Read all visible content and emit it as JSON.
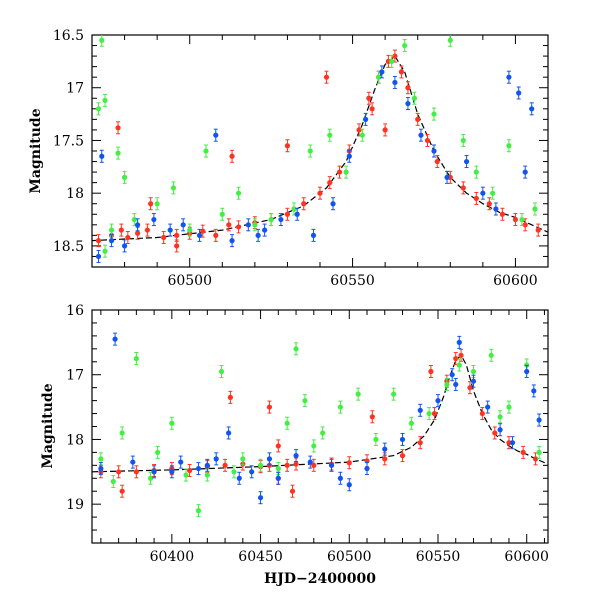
{
  "colors": {
    "red": "#ff3322",
    "green": "#44ee44",
    "blue": "#1155ee",
    "model": "#000000"
  },
  "chart_data": [
    {
      "id": "top",
      "type": "scatter",
      "title": "",
      "xlabel": "",
      "ylabel": "Magnitude",
      "xlim": [
        60470,
        60610
      ],
      "ylim": [
        18.7,
        16.5
      ],
      "y_inverted": true,
      "grid": false,
      "x_ticks": [
        60500,
        60550,
        60600
      ],
      "x_tick_labels": [
        "60500",
        "60550",
        "60600"
      ],
      "y_ticks": [
        16.5,
        17,
        17.5,
        18,
        18.5
      ],
      "y_tick_labels": [
        "16.5",
        "17",
        "17.5",
        "18",
        "18.5"
      ],
      "series": [
        {
          "name": "",
          "color": "red",
          "points": [
            [
              60472,
              18.45
            ],
            [
              60476,
              18.4
            ],
            [
              60479,
              18.35
            ],
            [
              60481,
              18.42
            ],
            [
              60484,
              18.38
            ],
            [
              60488,
              18.1
            ],
            [
              60492,
              18.42
            ],
            [
              60496,
              18.4
            ],
            [
              60500,
              18.38
            ],
            [
              60504,
              18.36
            ],
            [
              60508,
              18.4
            ],
            [
              60512,
              18.3
            ],
            [
              60515,
              18.32
            ],
            [
              60520,
              18.28
            ],
            [
              60525,
              18.25
            ],
            [
              60530,
              18.2
            ],
            [
              60535,
              18.1
            ],
            [
              60540,
              18.0
            ],
            [
              60543,
              17.9
            ],
            [
              60546,
              17.8
            ],
            [
              60549,
              17.6
            ],
            [
              60552,
              17.4
            ],
            [
              60555,
              17.1
            ],
            [
              60558,
              16.9
            ],
            [
              60561,
              16.75
            ],
            [
              60563,
              16.7
            ],
            [
              60565,
              16.85
            ],
            [
              60567,
              17.0
            ],
            [
              60570,
              17.3
            ],
            [
              60573,
              17.5
            ],
            [
              60576,
              17.7
            ],
            [
              60580,
              17.85
            ],
            [
              60584,
              17.95
            ],
            [
              60588,
              18.05
            ],
            [
              60592,
              18.1
            ],
            [
              60596,
              18.2
            ],
            [
              60600,
              18.25
            ],
            [
              60603,
              18.3
            ],
            [
              60607,
              18.35
            ],
            [
              60478,
              17.38
            ],
            [
              60487,
              18.35
            ],
            [
              60513,
              17.65
            ],
            [
              60530,
              17.55
            ],
            [
              60542,
              16.9
            ],
            [
              60556,
              17.2
            ],
            [
              60560,
              17.4
            ],
            [
              60496,
              18.5
            ]
          ]
        },
        {
          "name": "",
          "color": "green",
          "points": [
            [
              60472,
              17.2
            ],
            [
              60474,
              17.12
            ],
            [
              60473,
              16.55
            ],
            [
              60478,
              17.62
            ],
            [
              60480,
              17.85
            ],
            [
              60483,
              18.25
            ],
            [
              60490,
              18.1
            ],
            [
              60495,
              17.95
            ],
            [
              60500,
              18.35
            ],
            [
              60505,
              17.6
            ],
            [
              60510,
              18.2
            ],
            [
              60515,
              18.0
            ],
            [
              60520,
              18.3
            ],
            [
              60525,
              18.25
            ],
            [
              60532,
              18.15
            ],
            [
              60537,
              17.6
            ],
            [
              60543,
              17.45
            ],
            [
              60548,
              17.8
            ],
            [
              60553,
              17.45
            ],
            [
              60558,
              16.9
            ],
            [
              60562,
              16.75
            ],
            [
              60566,
              16.6
            ],
            [
              60569,
              17.1
            ],
            [
              60575,
              17.25
            ],
            [
              60580,
              16.55
            ],
            [
              60584,
              17.5
            ],
            [
              60588,
              17.8
            ],
            [
              60593,
              18.0
            ],
            [
              60598,
              17.55
            ],
            [
              60602,
              18.25
            ],
            [
              60606,
              18.15
            ],
            [
              60474,
              18.55
            ],
            [
              60476,
              18.35
            ]
          ]
        },
        {
          "name": "",
          "color": "blue",
          "points": [
            [
              60472,
              18.6
            ],
            [
              60473,
              17.65
            ],
            [
              60476,
              18.45
            ],
            [
              60480,
              18.5
            ],
            [
              60484,
              18.3
            ],
            [
              60489,
              18.25
            ],
            [
              60494,
              18.35
            ],
            [
              60498,
              18.3
            ],
            [
              60503,
              18.4
            ],
            [
              60508,
              17.45
            ],
            [
              60513,
              18.45
            ],
            [
              60518,
              18.3
            ],
            [
              60523,
              18.35
            ],
            [
              60528,
              18.25
            ],
            [
              60533,
              18.2
            ],
            [
              60538,
              18.4
            ],
            [
              60544,
              18.1
            ],
            [
              60549,
              17.65
            ],
            [
              60554,
              17.3
            ],
            [
              60559,
              16.85
            ],
            [
              60563,
              16.95
            ],
            [
              60567,
              17.15
            ],
            [
              60571,
              17.45
            ],
            [
              60575,
              17.6
            ],
            [
              60579,
              17.85
            ],
            [
              60585,
              17.7
            ],
            [
              60590,
              18.0
            ],
            [
              60594,
              18.15
            ],
            [
              60598,
              16.9
            ],
            [
              60601,
              17.05
            ],
            [
              60603,
              17.8
            ],
            [
              60605,
              17.2
            ],
            [
              60521,
              18.4
            ]
          ]
        }
      ],
      "model_curve": [
        [
          60470,
          18.45
        ],
        [
          60490,
          18.42
        ],
        [
          60510,
          18.35
        ],
        [
          60525,
          18.25
        ],
        [
          60535,
          18.12
        ],
        [
          60542,
          17.95
        ],
        [
          60548,
          17.7
        ],
        [
          60553,
          17.35
        ],
        [
          60557,
          17.0
        ],
        [
          60560,
          16.78
        ],
        [
          60563,
          16.7
        ],
        [
          60566,
          16.85
        ],
        [
          60570,
          17.25
        ],
        [
          60575,
          17.6
        ],
        [
          60580,
          17.85
        ],
        [
          60585,
          18.0
        ],
        [
          60590,
          18.1
        ],
        [
          60595,
          18.18
        ],
        [
          60600,
          18.23
        ],
        [
          60605,
          18.3
        ],
        [
          60610,
          18.37
        ]
      ]
    },
    {
      "id": "bottom",
      "type": "scatter",
      "title": "",
      "xlabel": "HJD−2400000",
      "ylabel": "Magnitude",
      "xlim": [
        60355,
        60612
      ],
      "ylim": [
        19.6,
        16.0
      ],
      "y_inverted": true,
      "grid": false,
      "x_ticks": [
        60400,
        60450,
        60500,
        60550,
        60600
      ],
      "x_tick_labels": [
        "60400",
        "60450",
        "60500",
        "60550",
        "60600"
      ],
      "y_ticks": [
        16,
        17,
        18,
        19
      ],
      "y_tick_labels": [
        "16",
        "17",
        "18",
        "19"
      ],
      "series": [
        {
          "name": "",
          "color": "red",
          "points": [
            [
              60360,
              18.5
            ],
            [
              60370,
              18.5
            ],
            [
              60380,
              18.5
            ],
            [
              60390,
              18.48
            ],
            [
              60400,
              18.45
            ],
            [
              60410,
              18.48
            ],
            [
              60420,
              18.42
            ],
            [
              60430,
              18.4
            ],
            [
              60440,
              18.38
            ],
            [
              60450,
              18.42
            ],
            [
              60455,
              18.4
            ],
            [
              60460,
              18.6
            ],
            [
              60465,
              18.4
            ],
            [
              60470,
              18.38
            ],
            [
              60480,
              18.4
            ],
            [
              60490,
              18.38
            ],
            [
              60500,
              18.36
            ],
            [
              60510,
              18.33
            ],
            [
              60520,
              18.3
            ],
            [
              60530,
              18.25
            ],
            [
              60540,
              18.05
            ],
            [
              60548,
              17.6
            ],
            [
              60555,
              17.1
            ],
            [
              60560,
              16.75
            ],
            [
              60563,
              16.7
            ],
            [
              60568,
              17.2
            ],
            [
              60575,
              17.6
            ],
            [
              60582,
              17.9
            ],
            [
              60590,
              18.05
            ],
            [
              60598,
              18.2
            ],
            [
              60605,
              18.3
            ],
            [
              60372,
              18.8
            ],
            [
              60433,
              17.35
            ],
            [
              60455,
              17.5
            ],
            [
              60513,
              17.65
            ],
            [
              60546,
              16.95
            ],
            [
              60460,
              18.1
            ],
            [
              60468,
              18.8
            ]
          ]
        },
        {
          "name": "",
          "color": "green",
          "points": [
            [
              60360,
              18.3
            ],
            [
              60367,
              18.65
            ],
            [
              60372,
              17.9
            ],
            [
              60380,
              16.75
            ],
            [
              60388,
              18.6
            ],
            [
              60392,
              18.2
            ],
            [
              60400,
              17.75
            ],
            [
              60408,
              18.55
            ],
            [
              60415,
              19.1
            ],
            [
              60420,
              18.55
            ],
            [
              60428,
              16.95
            ],
            [
              60435,
              18.5
            ],
            [
              60440,
              18.3
            ],
            [
              60450,
              18.4
            ],
            [
              60460,
              18.45
            ],
            [
              60465,
              17.75
            ],
            [
              60470,
              16.6
            ],
            [
              60475,
              17.4
            ],
            [
              60480,
              18.1
            ],
            [
              60485,
              17.9
            ],
            [
              60495,
              17.5
            ],
            [
              60505,
              17.3
            ],
            [
              60515,
              18.0
            ],
            [
              60525,
              17.3
            ],
            [
              60535,
              17.75
            ],
            [
              60545,
              17.6
            ],
            [
              60555,
              17.15
            ],
            [
              60562,
              16.85
            ],
            [
              60570,
              16.95
            ],
            [
              60580,
              16.7
            ],
            [
              60585,
              17.65
            ],
            [
              60590,
              17.5
            ],
            [
              60600,
              16.85
            ],
            [
              60607,
              18.2
            ]
          ]
        },
        {
          "name": "",
          "color": "blue",
          "points": [
            [
              60360,
              18.45
            ],
            [
              60368,
              16.45
            ],
            [
              60378,
              18.35
            ],
            [
              60390,
              18.5
            ],
            [
              60400,
              18.5
            ],
            [
              60405,
              18.35
            ],
            [
              60415,
              18.45
            ],
            [
              60420,
              18.4
            ],
            [
              60425,
              18.3
            ],
            [
              60432,
              17.9
            ],
            [
              60438,
              18.6
            ],
            [
              60445,
              18.5
            ],
            [
              60450,
              18.9
            ],
            [
              60455,
              18.3
            ],
            [
              60460,
              18.6
            ],
            [
              60470,
              18.25
            ],
            [
              60478,
              18.35
            ],
            [
              60490,
              18.4
            ],
            [
              60495,
              18.6
            ],
            [
              60500,
              18.7
            ],
            [
              60510,
              18.45
            ],
            [
              60520,
              18.15
            ],
            [
              60530,
              18.0
            ],
            [
              60540,
              17.55
            ],
            [
              60550,
              17.4
            ],
            [
              60558,
              17.0
            ],
            [
              60562,
              16.5
            ],
            [
              60570,
              17.1
            ],
            [
              60578,
              17.5
            ],
            [
              60585,
              17.85
            ],
            [
              60592,
              18.05
            ],
            [
              60600,
              16.95
            ],
            [
              60604,
              17.25
            ],
            [
              60607,
              17.7
            ],
            [
              60560,
              17.15
            ]
          ]
        }
      ],
      "model_curve": [
        [
          60355,
          18.5
        ],
        [
          60400,
          18.47
        ],
        [
          60450,
          18.42
        ],
        [
          60500,
          18.35
        ],
        [
          60525,
          18.25
        ],
        [
          60535,
          18.12
        ],
        [
          60542,
          17.95
        ],
        [
          60548,
          17.7
        ],
        [
          60553,
          17.35
        ],
        [
          60557,
          17.0
        ],
        [
          60560,
          16.78
        ],
        [
          60563,
          16.7
        ],
        [
          60566,
          16.85
        ],
        [
          60570,
          17.25
        ],
        [
          60575,
          17.6
        ],
        [
          60580,
          17.85
        ],
        [
          60585,
          18.0
        ],
        [
          60590,
          18.1
        ],
        [
          60595,
          18.18
        ],
        [
          60600,
          18.23
        ],
        [
          60605,
          18.3
        ],
        [
          60612,
          18.38
        ]
      ]
    }
  ]
}
